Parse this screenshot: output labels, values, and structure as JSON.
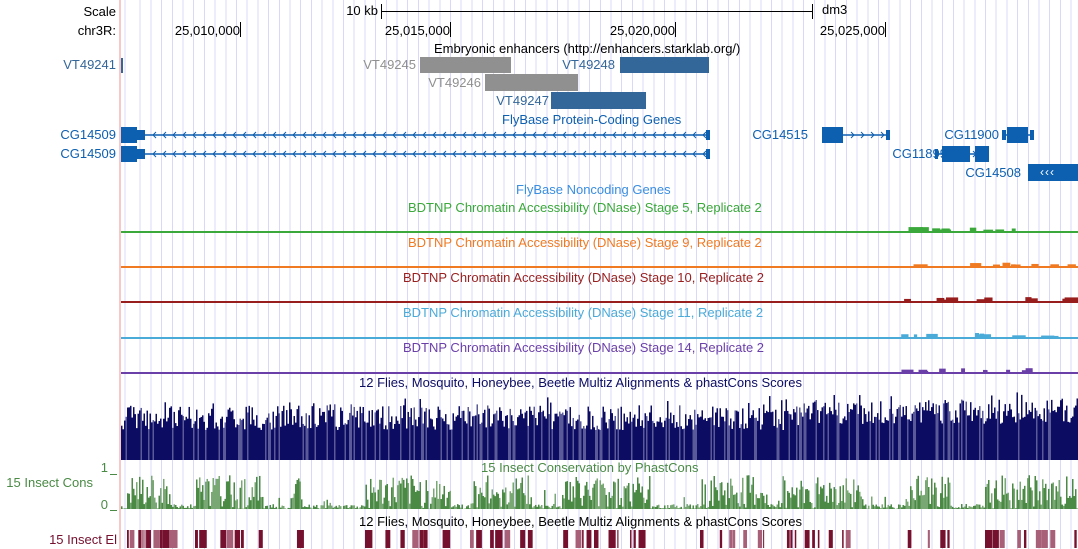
{
  "ruler": {
    "scale_label": "Scale",
    "scale_bar_label": "10 kb",
    "assembly": "dm3",
    "chrom_label": "chr3R:",
    "ticks": [
      "25,010,000",
      "25,015,000",
      "25,020,000",
      "25,025,000"
    ]
  },
  "enhancers": {
    "title": "Embryonic enhancers (http://enhancers.starklab.org/)",
    "items": [
      {
        "name": "VT49241",
        "color": "#336699"
      },
      {
        "name": "VT49245",
        "color": "#909090"
      },
      {
        "name": "VT49246",
        "color": "#909090"
      },
      {
        "name": "VT49248",
        "color": "#336699"
      },
      {
        "name": "VT49247",
        "color": "#336699"
      }
    ]
  },
  "genes": {
    "title": "FlyBase Protein-Coding Genes",
    "color": "#0d5faf",
    "items": [
      "CG14509",
      "CG14509",
      "CG14515",
      "CG11900",
      "CG11899",
      "CG14508"
    ],
    "strand_glyph": "‹‹‹"
  },
  "noncoding": {
    "title": "FlyBase Noncoding Genes"
  },
  "dnase": [
    {
      "title": "BDTNP Chromatin Accessibility (DNase) Stage 5, Replicate 2",
      "color": "#3aa83a"
    },
    {
      "title": "BDTNP Chromatin Accessibility (DNase) Stage 9, Replicate 2",
      "color": "#f07a22"
    },
    {
      "title": "BDTNP Chromatin Accessibility (DNase) Stage 10, Replicate 2",
      "color": "#981e1e"
    },
    {
      "title": "BDTNP Chromatin Accessibility (DNase) Stage 11, Replicate 2",
      "color": "#4aaad8"
    },
    {
      "title": "BDTNP Chromatin Accessibility (DNase) Stage 14, Replicate 2",
      "color": "#6b3fa8"
    }
  ],
  "multiz": {
    "title": "12 Flies, Mosquito, Honeybee, Beetle Multiz Alignments & phastCons Scores",
    "color": "#0c0c62"
  },
  "cons": {
    "label": "15 Insect Cons",
    "title": "15 Insect Conservation by PhastCons",
    "ymax": "1",
    "ymin": "0",
    "color": "#4a8a45"
  },
  "elements": {
    "label": "15 Insect El",
    "title": "12 Flies, Mosquito, Honeybee, Beetle Multiz Alignments & phastCons Scores",
    "color": "#75102e"
  }
}
